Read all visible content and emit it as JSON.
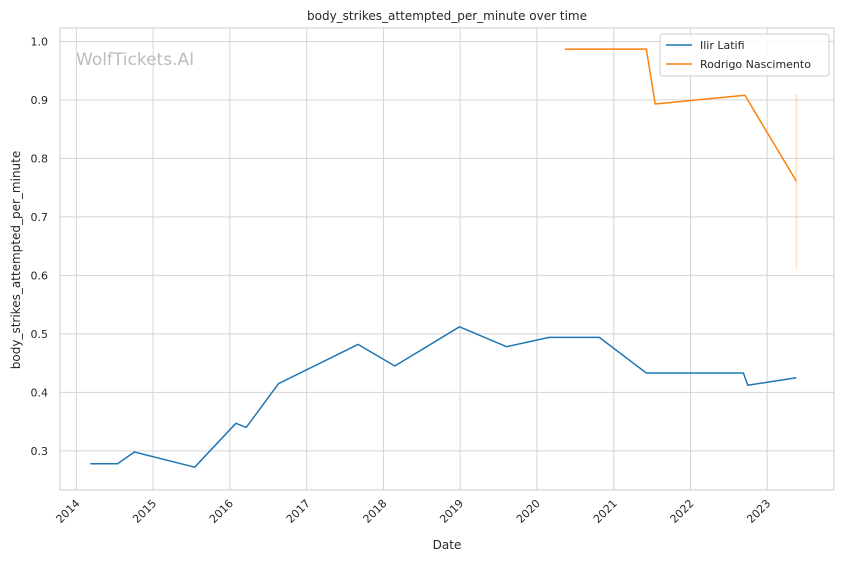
{
  "chart_data": {
    "type": "line",
    "title": "body_strikes_attempted_per_minute over time",
    "xlabel": "Date",
    "ylabel": "body_strikes_attempted_per_minute",
    "watermark": "WolfTickets.AI",
    "x_ticks": [
      "2014",
      "2015",
      "2016",
      "2017",
      "2018",
      "2019",
      "2020",
      "2021",
      "2022",
      "2023"
    ],
    "y_ticks": [
      "0.3",
      "0.4",
      "0.5",
      "0.6",
      "0.7",
      "0.8",
      "0.9",
      "1.0"
    ],
    "xlim": [
      "2013-10-15",
      "2023-11-15"
    ],
    "ylim": [
      0.233,
      1.023
    ],
    "grid": true,
    "legend_position": "top-right",
    "series": [
      {
        "name": "Ilir Latifi",
        "color": "#1f77b4",
        "points": [
          {
            "x": "2014-03-08",
            "y": 0.278
          },
          {
            "x": "2014-07-16",
            "y": 0.278
          },
          {
            "x": "2014-10-04",
            "y": 0.298
          },
          {
            "x": "2015-07-18",
            "y": 0.272
          },
          {
            "x": "2016-01-30",
            "y": 0.347
          },
          {
            "x": "2016-03-19",
            "y": 0.34
          },
          {
            "x": "2016-08-20",
            "y": 0.415
          },
          {
            "x": "2017-09-02",
            "y": 0.482
          },
          {
            "x": "2018-02-24",
            "y": 0.445
          },
          {
            "x": "2018-12-29",
            "y": 0.512
          },
          {
            "x": "2019-08-10",
            "y": 0.478
          },
          {
            "x": "2020-02-29",
            "y": 0.494
          },
          {
            "x": "2020-10-24",
            "y": 0.494
          },
          {
            "x": "2021-06-05",
            "y": 0.433
          },
          {
            "x": "2022-09-10",
            "y": 0.433
          },
          {
            "x": "2022-10-01",
            "y": 0.412
          },
          {
            "x": "2023-05-20",
            "y": 0.425
          }
        ]
      },
      {
        "name": "Rodrigo Nascimento",
        "color": "#ff7f0e",
        "points": [
          {
            "x": "2020-05-13",
            "y": 0.987
          },
          {
            "x": "2021-06-05",
            "y": 0.987
          },
          {
            "x": "2021-07-17",
            "y": 0.893
          },
          {
            "x": "2022-09-17",
            "y": 0.908
          },
          {
            "x": "2023-05-20",
            "y": 0.761
          }
        ]
      }
    ],
    "error_band": {
      "series": "Rodrigo Nascimento",
      "x": "2023-05-20",
      "y_low": 0.612,
      "y_high": 0.91
    }
  }
}
